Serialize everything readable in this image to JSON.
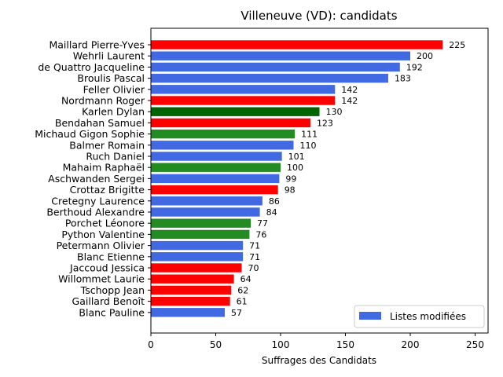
{
  "chart_data": {
    "type": "bar",
    "orientation": "horizontal",
    "title": "Villeneuve (VD): candidats",
    "xlabel": "Suffrages des Candidats",
    "ylabel": "",
    "xlim": [
      0,
      260
    ],
    "xticks": [
      "0",
      "50",
      "100",
      "150",
      "200",
      "250"
    ],
    "legend": {
      "label": "Listes modifiées",
      "color": "#4169e1",
      "placement": "lower-right"
    },
    "bars": [
      {
        "name": "Maillard Pierre-Yves",
        "value": 225,
        "color": "#ff0000"
      },
      {
        "name": "Wehrli Laurent",
        "value": 200,
        "color": "#4169e1"
      },
      {
        "name": "de Quattro Jacqueline",
        "value": 192,
        "color": "#4169e1"
      },
      {
        "name": "Broulis Pascal",
        "value": 183,
        "color": "#4169e1"
      },
      {
        "name": "Feller Olivier",
        "value": 142,
        "color": "#4169e1"
      },
      {
        "name": "Nordmann Roger",
        "value": 142,
        "color": "#ff0000"
      },
      {
        "name": "Karlen Dylan",
        "value": 130,
        "color": "#006400"
      },
      {
        "name": "Bendahan Samuel",
        "value": 123,
        "color": "#ff0000"
      },
      {
        "name": "Michaud Gigon Sophie",
        "value": 111,
        "color": "#228b22"
      },
      {
        "name": "Balmer Romain",
        "value": 110,
        "color": "#4169e1"
      },
      {
        "name": "Ruch Daniel",
        "value": 101,
        "color": "#4169e1"
      },
      {
        "name": "Mahaim Raphaël",
        "value": 100,
        "color": "#228b22"
      },
      {
        "name": "Aschwanden Sergei",
        "value": 99,
        "color": "#4169e1"
      },
      {
        "name": "Crottaz Brigitte",
        "value": 98,
        "color": "#ff0000"
      },
      {
        "name": "Cretegny Laurence",
        "value": 86,
        "color": "#4169e1"
      },
      {
        "name": "Berthoud Alexandre",
        "value": 84,
        "color": "#4169e1"
      },
      {
        "name": "Porchet Léonore",
        "value": 77,
        "color": "#228b22"
      },
      {
        "name": "Python Valentine",
        "value": 76,
        "color": "#228b22"
      },
      {
        "name": "Petermann Olivier",
        "value": 71,
        "color": "#4169e1"
      },
      {
        "name": "Blanc Etienne",
        "value": 71,
        "color": "#4169e1"
      },
      {
        "name": "Jaccoud Jessica",
        "value": 70,
        "color": "#ff0000"
      },
      {
        "name": "Willommet Laurie",
        "value": 64,
        "color": "#ff0000"
      },
      {
        "name": "Tschopp Jean",
        "value": 62,
        "color": "#ff0000"
      },
      {
        "name": "Gaillard Benoît",
        "value": 61,
        "color": "#ff0000"
      },
      {
        "name": "Blanc Pauline",
        "value": 57,
        "color": "#4169e1"
      }
    ]
  }
}
